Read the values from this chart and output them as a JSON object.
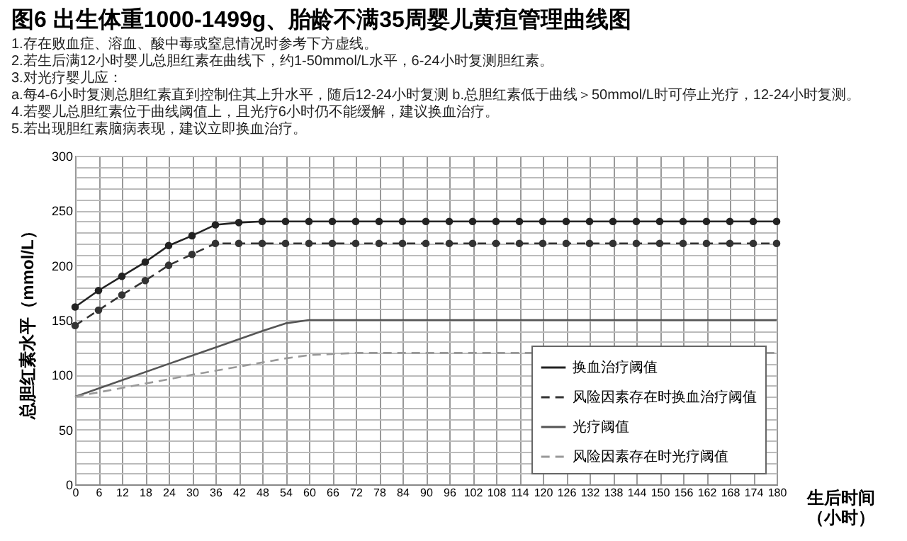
{
  "chart_data": {
    "type": "line",
    "title": "图6 出生体重1000-1499g、胎龄不满35周婴儿黄疸管理曲线图",
    "annotations": [
      "1.存在败血症、溶血、酸中毒或窒息情况时参考下方虚线。",
      "2.若生后满12小时婴儿总胆红素在曲线下，约1-50mmol/L水平，6-24小时复测胆红素。",
      "3.对光疗婴儿应：",
      "   a.每4-6小时复测总胆红素直到控制住其上升水平，随后12-24小时复测      b.总胆红素低于曲线＞50mmol/L时可停止光疗，12-24小时复测。",
      "4.若婴儿总胆红素位于曲线阈值上，且光疗6小时仍不能缓解，建议换血治疗。",
      "5.若出现胆红素脑病表现，建议立即换血治疗。"
    ],
    "xlabel": "生后时间（小时）",
    "ylabel": "总胆红素水平（mmol/L）",
    "xlim": [
      0,
      180
    ],
    "xticks": [
      0,
      6,
      12,
      18,
      24,
      30,
      36,
      42,
      48,
      54,
      60,
      66,
      72,
      78,
      84,
      90,
      96,
      102,
      108,
      114,
      120,
      126,
      132,
      138,
      144,
      150,
      156,
      162,
      168,
      174,
      180
    ],
    "ylim": [
      0,
      300
    ],
    "yticks": [
      0,
      {
        "value": 10,
        "label": null
      },
      {
        "value": 20,
        "label": null
      },
      {
        "value": 30,
        "label": null
      },
      {
        "value": 40,
        "label": null
      },
      50,
      {
        "value": 60,
        "label": null
      },
      {
        "value": 70,
        "label": null
      },
      {
        "value": 80,
        "label": null
      },
      {
        "value": 90,
        "label": null
      },
      100,
      {
        "value": 110,
        "label": null
      },
      {
        "value": 120,
        "label": null
      },
      {
        "value": 130,
        "label": null
      },
      {
        "value": 140,
        "label": null
      },
      150,
      {
        "value": 160,
        "label": null
      },
      {
        "value": 170,
        "label": null
      },
      {
        "value": 180,
        "label": null
      },
      {
        "value": 190,
        "label": null
      },
      200,
      {
        "value": 210,
        "label": null
      },
      {
        "value": 220,
        "label": null
      },
      {
        "value": 230,
        "label": null
      },
      {
        "value": 240,
        "label": null
      },
      250,
      {
        "value": 260,
        "label": null
      },
      {
        "value": 270,
        "label": null
      },
      {
        "value": 280,
        "label": null
      },
      {
        "value": 290,
        "label": null
      },
      300
    ],
    "grid": true,
    "legend": "bottom right",
    "series": [
      {
        "name": "换血治疗阈值",
        "color": "#222222",
        "marker": "circle",
        "line_style": "solid",
        "x": [
          0,
          6,
          12,
          18,
          24,
          30,
          36,
          42,
          48,
          54,
          60,
          66,
          72,
          78,
          84,
          90,
          96,
          102,
          108,
          114,
          120,
          126,
          132,
          138,
          144,
          150,
          156,
          162,
          168,
          174,
          180
        ],
        "values": [
          162,
          177,
          190,
          203,
          218,
          227,
          237,
          239,
          240,
          240,
          240,
          240,
          240,
          240,
          240,
          240,
          240,
          240,
          240,
          240,
          240,
          240,
          240,
          240,
          240,
          240,
          240,
          240,
          240,
          240,
          240
        ]
      },
      {
        "name": "风险因素存在时换血治疗阈值",
        "color": "#333333",
        "marker": "circle",
        "line_style": "dashed",
        "x": [
          0,
          6,
          12,
          18,
          24,
          30,
          36,
          42,
          48,
          54,
          60,
          66,
          72,
          78,
          84,
          90,
          96,
          102,
          108,
          114,
          120,
          126,
          132,
          138,
          144,
          150,
          156,
          162,
          168,
          174,
          180
        ],
        "values": [
          145,
          159,
          173,
          186,
          200,
          210,
          220,
          220,
          220,
          220,
          220,
          220,
          220,
          220,
          220,
          220,
          220,
          220,
          220,
          220,
          220,
          220,
          220,
          220,
          220,
          220,
          220,
          220,
          220,
          220,
          220
        ]
      },
      {
        "name": "光疗阈值",
        "color": "#555555",
        "marker": "none",
        "line_style": "solid",
        "x": [
          0,
          12,
          24,
          36,
          48,
          54,
          60,
          180
        ],
        "values": [
          80,
          95,
          110,
          125,
          140,
          147,
          150,
          150
        ]
      },
      {
        "name": "风险因素存在时光疗阈值",
        "color": "#999999",
        "marker": "none",
        "line_style": "dashed",
        "x": [
          0,
          30,
          54,
          60,
          66,
          72,
          180
        ],
        "values": [
          80,
          100,
          115,
          118,
          119,
          120,
          120
        ]
      }
    ]
  }
}
